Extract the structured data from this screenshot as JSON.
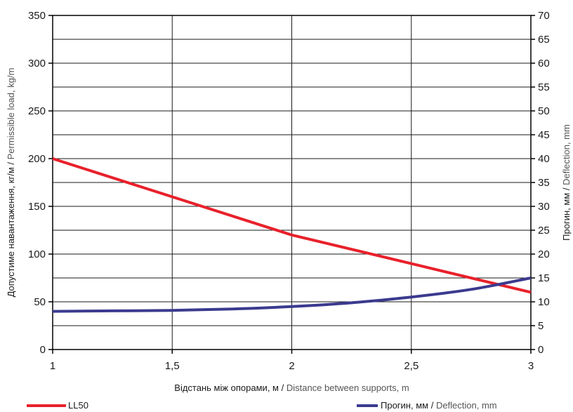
{
  "chart_data": {
    "type": "line",
    "xlabel_ua": "Відстань між опорами, м",
    "xlabel_en": "Distance between supports, m",
    "ylabel_left_ua": "Допустиме навантаження, кг/м",
    "ylabel_left_en": "Permissible load, kg/m",
    "ylabel_right_ua": "Прогин, мм",
    "ylabel_right_en": "Deflection, mm",
    "label_sep": " / ",
    "xlim": [
      1,
      3
    ],
    "ylim_left": [
      0,
      350
    ],
    "ylim_right": [
      0,
      70
    ],
    "x_ticks": [
      "1",
      "1,5",
      "2",
      "2,5",
      "3"
    ],
    "x_tick_values": [
      1,
      1.5,
      2,
      2.5,
      3
    ],
    "y_left_ticks": [
      0,
      50,
      100,
      150,
      200,
      250,
      300,
      350
    ],
    "y_right_ticks": [
      0,
      5,
      10,
      15,
      20,
      25,
      30,
      35,
      40,
      45,
      50,
      55,
      60,
      65,
      70
    ],
    "grid": true,
    "legend_placement": "bottom",
    "series": [
      {
        "name": "LL50",
        "axis": "left",
        "color": "#e8212b",
        "x": [
          1,
          1.5,
          2,
          2.5,
          3
        ],
        "y": [
          200,
          160,
          120,
          90,
          60
        ]
      },
      {
        "name_ua": "Прогин, мм",
        "name_en": "Deflection, mm",
        "axis": "right",
        "color": "#3b3a8f",
        "x": [
          1,
          1.25,
          1.5,
          1.75,
          2,
          2.25,
          2.5,
          2.75,
          3
        ],
        "y": [
          8,
          8.1,
          8.2,
          8.5,
          9,
          9.8,
          11,
          12.6,
          15
        ]
      }
    ]
  }
}
